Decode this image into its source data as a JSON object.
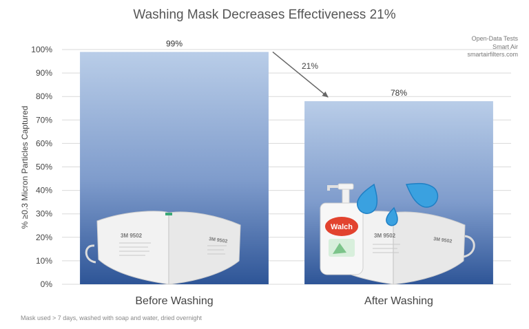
{
  "chart_data": {
    "type": "bar",
    "title": "Washing Mask Decreases Effectiveness 21%",
    "categories": [
      "Before Washing",
      "After Washing"
    ],
    "values": [
      99,
      78
    ],
    "data_labels": [
      "99%",
      "78%"
    ],
    "ylabel": "% ≥0.3 Micron Particles Captured",
    "xlabel": "",
    "ylim": [
      0,
      100
    ],
    "yticks": [
      0,
      10,
      20,
      30,
      40,
      50,
      60,
      70,
      80,
      90,
      100
    ],
    "ytick_labels": [
      "0%",
      "10%",
      "20%",
      "30%",
      "40%",
      "50%",
      "60%",
      "70%",
      "80%",
      "90%",
      "100%"
    ],
    "grid": true,
    "legend": "none",
    "annotation": {
      "text": "21%",
      "type": "arrow",
      "from": "Before Washing",
      "to": "After Washing"
    },
    "colors": {
      "bar_top": "#b9cde8",
      "bar_bottom": "#2e5597",
      "grid": "#d9d9d9",
      "arrow": "#666666"
    }
  },
  "source_lines": [
    "Open-Data Tests",
    "Smart Air",
    "smartairfilters.com"
  ],
  "footnote": "Mask used > 7 days, washed with soap and water, dried overnight",
  "images": {
    "before_bar": "3M 9502 mask illustration",
    "after_bar": "3M 9502 mask with Walch soap bottle and water drops illustration",
    "mask_print": "3M 9502",
    "soap_brand": "Walch"
  }
}
